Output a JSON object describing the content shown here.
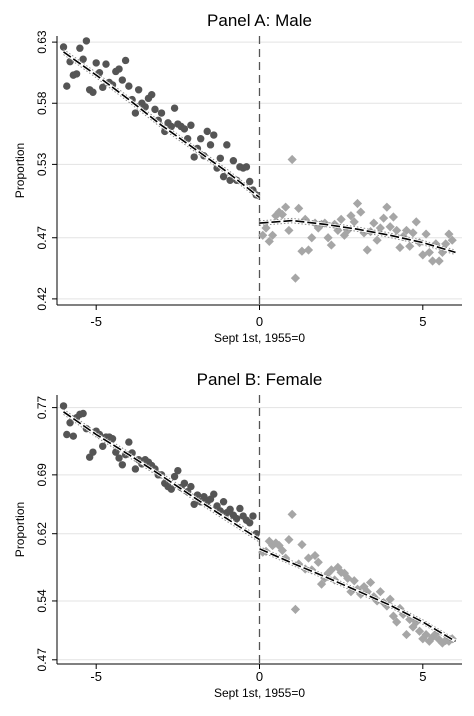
{
  "chart_data": [
    {
      "type": "scatter",
      "title": "Panel A: Male",
      "xlabel": "Sept 1st, 1955=0",
      "ylabel": "Proportion",
      "xlim": [
        -6.2,
        6.2
      ],
      "ylim": [
        0.415,
        0.635
      ],
      "xticks": [
        -5,
        0,
        5
      ],
      "xtick_labels": [
        "-5",
        "0",
        "5"
      ],
      "yticks": [
        0.42,
        0.47,
        0.53,
        0.58,
        0.63
      ],
      "ytick_labels": [
        "0.42",
        "0.47",
        "0.53",
        "0.58",
        "0.63"
      ],
      "grid": "horizontal",
      "cutoff_x": 0,
      "colors": {
        "left_points": "#555555",
        "right_points": "#a6a6a6",
        "fit": "#000000",
        "ci": "#888888",
        "cutoff": "#555555"
      },
      "series": [
        {
          "marker": "circle",
          "side": "left",
          "x": [
            -6.0,
            -5.9,
            -5.8,
            -5.7,
            -5.6,
            -5.5,
            -5.4,
            -5.3,
            -5.2,
            -5.1,
            -5.0,
            -4.9,
            -4.8,
            -4.7,
            -4.6,
            -4.5,
            -4.4,
            -4.3,
            -4.2,
            -4.1,
            -4.0,
            -3.9,
            -3.8,
            -3.7,
            -3.6,
            -3.5,
            -3.4,
            -3.3,
            -3.2,
            -3.1,
            -3.0,
            -2.9,
            -2.8,
            -2.7,
            -2.6,
            -2.5,
            -2.4,
            -2.3,
            -2.2,
            -2.1,
            -2.0,
            -1.9,
            -1.8,
            -1.7,
            -1.6,
            -1.5,
            -1.4,
            -1.3,
            -1.2,
            -1.1,
            -1.0,
            -0.9,
            -0.8,
            -0.7,
            -0.6,
            -0.5,
            -0.4,
            -0.3,
            -0.2,
            -0.1
          ],
          "y": [
            0.626,
            0.594,
            0.614,
            0.603,
            0.604,
            0.625,
            0.616,
            0.631,
            0.591,
            0.589,
            0.613,
            0.605,
            0.593,
            0.612,
            0.597,
            0.595,
            0.606,
            0.608,
            0.599,
            0.615,
            0.594,
            0.583,
            0.572,
            0.591,
            0.58,
            0.577,
            0.584,
            0.587,
            0.575,
            0.566,
            0.572,
            0.557,
            0.564,
            0.561,
            0.576,
            0.563,
            0.561,
            0.559,
            0.551,
            0.562,
            0.536,
            0.543,
            0.551,
            0.537,
            0.557,
            0.546,
            0.554,
            0.527,
            0.535,
            0.52,
            0.546,
            0.517,
            0.533,
            0.517,
            0.528,
            0.527,
            0.528,
            0.516,
            0.509,
            0.505
          ]
        },
        {
          "marker": "diamond",
          "side": "right",
          "x": [
            0.1,
            0.2,
            0.3,
            0.4,
            0.5,
            0.6,
            0.7,
            0.8,
            0.9,
            1.0,
            1.1,
            1.2,
            1.3,
            1.4,
            1.5,
            1.6,
            1.7,
            1.8,
            1.9,
            2.0,
            2.1,
            2.2,
            2.3,
            2.4,
            2.5,
            2.6,
            2.7,
            2.8,
            2.9,
            3.0,
            3.1,
            3.2,
            3.3,
            3.4,
            3.5,
            3.6,
            3.7,
            3.8,
            3.9,
            4.0,
            4.1,
            4.2,
            4.3,
            4.4,
            4.5,
            4.6,
            4.7,
            4.8,
            4.9,
            5.0,
            5.1,
            5.2,
            5.3,
            5.4,
            5.5,
            5.6,
            5.7,
            5.8,
            5.9
          ],
          "y": [
            0.472,
            0.478,
            0.467,
            0.472,
            0.488,
            0.491,
            0.489,
            0.495,
            0.476,
            0.534,
            0.437,
            0.494,
            0.459,
            0.485,
            0.46,
            0.47,
            0.482,
            0.478,
            0.481,
            0.482,
            0.47,
            0.464,
            0.481,
            0.476,
            0.485,
            0.472,
            0.476,
            0.488,
            0.483,
            0.498,
            0.491,
            0.474,
            0.46,
            0.475,
            0.482,
            0.468,
            0.478,
            0.486,
            0.495,
            0.479,
            0.487,
            0.476,
            0.462,
            0.471,
            0.476,
            0.463,
            0.474,
            0.483,
            0.466,
            0.456,
            0.473,
            0.458,
            0.451,
            0.465,
            0.451,
            0.458,
            0.465,
            0.473,
            0.468
          ]
        }
      ],
      "fit_left": {
        "x": [
          -6.0,
          -5.0,
          -4.0,
          -3.0,
          -2.0,
          -1.0,
          0.0
        ],
        "y": [
          0.622,
          0.603,
          0.583,
          0.562,
          0.543,
          0.524,
          0.503
        ]
      },
      "fit_right": {
        "x": [
          0.0,
          1.0,
          2.0,
          3.0,
          4.0,
          5.0,
          6.0
        ],
        "y": [
          0.482,
          0.484,
          0.481,
          0.477,
          0.472,
          0.466,
          0.458
        ]
      }
    },
    {
      "type": "scatter",
      "title": "Panel B: Female",
      "xlabel": "Sept 1st, 1955=0",
      "ylabel": "Proportion",
      "xlim": [
        -6.2,
        6.2
      ],
      "ylim": [
        0.465,
        0.785
      ],
      "xticks": [
        -5,
        0,
        5
      ],
      "xtick_labels": [
        "-5",
        "0",
        "5"
      ],
      "yticks": [
        0.47,
        0.54,
        0.62,
        0.69,
        0.77
      ],
      "ytick_labels": [
        "0.47",
        "0.54",
        "0.62",
        "0.69",
        "0.77"
      ],
      "grid": "horizontal",
      "cutoff_x": 0,
      "colors": {
        "left_points": "#555555",
        "right_points": "#a6a6a6",
        "fit": "#000000",
        "ci": "#888888",
        "cutoff": "#555555"
      },
      "series": [
        {
          "marker": "circle",
          "side": "left",
          "x": [
            -6.0,
            -5.9,
            -5.8,
            -5.7,
            -5.6,
            -5.5,
            -5.4,
            -5.3,
            -5.2,
            -5.1,
            -5.0,
            -4.9,
            -4.8,
            -4.7,
            -4.6,
            -4.5,
            -4.4,
            -4.3,
            -4.2,
            -4.1,
            -4.0,
            -3.9,
            -3.8,
            -3.7,
            -3.6,
            -3.5,
            -3.4,
            -3.3,
            -3.2,
            -3.1,
            -3.0,
            -2.9,
            -2.8,
            -2.7,
            -2.6,
            -2.5,
            -2.4,
            -2.3,
            -2.2,
            -2.1,
            -2.0,
            -1.9,
            -1.8,
            -1.7,
            -1.6,
            -1.5,
            -1.4,
            -1.3,
            -1.2,
            -1.1,
            -1.0,
            -0.9,
            -0.8,
            -0.7,
            -0.6,
            -0.5,
            -0.4,
            -0.3,
            -0.2,
            -0.1
          ],
          "y": [
            0.772,
            0.738,
            0.752,
            0.736,
            0.758,
            0.762,
            0.763,
            0.745,
            0.711,
            0.717,
            0.742,
            0.738,
            0.724,
            0.735,
            0.735,
            0.733,
            0.717,
            0.71,
            0.702,
            0.714,
            0.729,
            0.716,
            0.697,
            0.708,
            0.703,
            0.708,
            0.705,
            0.701,
            0.697,
            0.69,
            0.69,
            0.68,
            0.676,
            0.673,
            0.688,
            0.695,
            0.675,
            0.68,
            0.67,
            0.676,
            0.655,
            0.666,
            0.658,
            0.664,
            0.658,
            0.661,
            0.667,
            0.653,
            0.647,
            0.658,
            0.645,
            0.649,
            0.642,
            0.638,
            0.65,
            0.641,
            0.636,
            0.633,
            0.641,
            0.62
          ]
        },
        {
          "marker": "diamond",
          "side": "right",
          "x": [
            0.1,
            0.2,
            0.3,
            0.4,
            0.5,
            0.6,
            0.7,
            0.8,
            0.9,
            1.0,
            1.1,
            1.2,
            1.3,
            1.4,
            1.5,
            1.6,
            1.7,
            1.8,
            1.9,
            2.0,
            2.1,
            2.2,
            2.3,
            2.4,
            2.5,
            2.6,
            2.7,
            2.8,
            2.9,
            3.0,
            3.1,
            3.2,
            3.3,
            3.4,
            3.5,
            3.6,
            3.7,
            3.8,
            3.9,
            4.0,
            4.1,
            4.2,
            4.3,
            4.4,
            4.5,
            4.6,
            4.7,
            4.8,
            4.9,
            5.0,
            5.1,
            5.2,
            5.3,
            5.4,
            5.5,
            5.6,
            5.7,
            5.8,
            5.9
          ],
          "y": [
            0.598,
            0.599,
            0.611,
            0.606,
            0.609,
            0.606,
            0.6,
            0.591,
            0.613,
            0.643,
            0.53,
            0.584,
            0.607,
            0.578,
            0.591,
            0.577,
            0.594,
            0.586,
            0.56,
            0.567,
            0.573,
            0.577,
            0.565,
            0.58,
            0.574,
            0.573,
            0.567,
            0.551,
            0.564,
            0.554,
            0.548,
            0.557,
            0.551,
            0.562,
            0.545,
            0.54,
            0.551,
            0.538,
            0.534,
            0.542,
            0.522,
            0.515,
            0.531,
            0.524,
            0.5,
            0.518,
            0.509,
            0.515,
            0.504,
            0.495,
            0.5,
            0.492,
            0.497,
            0.501,
            0.494,
            0.49,
            0.493,
            0.492,
            0.495
          ]
        }
      ],
      "fit_left": {
        "x": [
          -6.0,
          -5.0,
          -4.0,
          -3.0,
          -2.0,
          -1.0,
          0.0
        ],
        "y": [
          0.765,
          0.738,
          0.714,
          0.689,
          0.663,
          0.638,
          0.613
        ]
      },
      "fit_right": {
        "x": [
          0.0,
          1.0,
          2.0,
          3.0,
          4.0,
          5.0,
          6.0
        ],
        "y": [
          0.602,
          0.585,
          0.569,
          0.552,
          0.535,
          0.515,
          0.492
        ]
      }
    }
  ]
}
